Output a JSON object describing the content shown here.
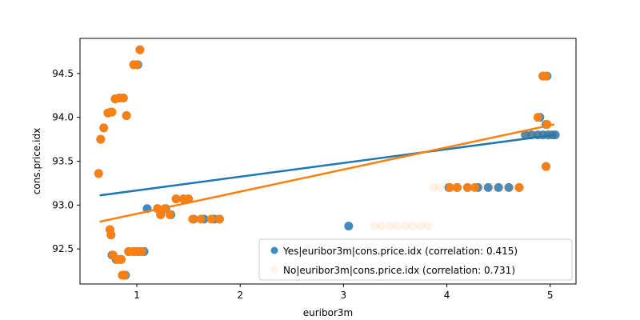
{
  "chart_data": {
    "type": "scatter",
    "title": "",
    "xlabel": "euribor3m",
    "ylabel": "cons.price.idx",
    "xlim": [
      0.45,
      5.25
    ],
    "ylim": [
      92.1,
      94.9
    ],
    "xticks": [
      1,
      2,
      3,
      4,
      5
    ],
    "yticks": [
      92.5,
      93.0,
      93.5,
      94.0,
      94.5
    ],
    "xtick_labels": [
      "1",
      "2",
      "3",
      "4",
      "5"
    ],
    "ytick_labels": [
      "92.5",
      "93.0",
      "93.5",
      "94.0",
      "94.5"
    ],
    "grid": false,
    "legend_position": "lower right",
    "series": [
      {
        "name": "Yes|euribor3m|cons.price.idx (correlation: 0.415)",
        "color": "#1f77b4",
        "alpha": 0.85,
        "points": [
          [
            0.63,
            93.36
          ],
          [
            0.65,
            93.75
          ],
          [
            0.68,
            93.88
          ],
          [
            0.72,
            94.05
          ],
          [
            0.75,
            94.06
          ],
          [
            0.79,
            94.21
          ],
          [
            0.83,
            94.22
          ],
          [
            0.87,
            94.22
          ],
          [
            0.9,
            94.02
          ],
          [
            0.74,
            92.72
          ],
          [
            0.75,
            92.66
          ],
          [
            0.76,
            92.43
          ],
          [
            0.8,
            92.38
          ],
          [
            0.84,
            92.38
          ],
          [
            0.86,
            92.2
          ],
          [
            0.89,
            92.2
          ],
          [
            0.92,
            92.47
          ],
          [
            0.97,
            92.47
          ],
          [
            1.02,
            92.47
          ],
          [
            1.07,
            92.47
          ],
          [
            0.97,
            94.6
          ],
          [
            1.01,
            94.6
          ],
          [
            1.03,
            94.77
          ],
          [
            1.1,
            92.96
          ],
          [
            1.2,
            92.96
          ],
          [
            1.28,
            92.96
          ],
          [
            1.23,
            92.89
          ],
          [
            1.33,
            92.89
          ],
          [
            1.38,
            93.07
          ],
          [
            1.45,
            93.07
          ],
          [
            1.5,
            93.07
          ],
          [
            1.55,
            92.84
          ],
          [
            1.65,
            92.84
          ],
          [
            1.75,
            92.84
          ],
          [
            1.8,
            92.84
          ],
          [
            3.05,
            92.76
          ],
          [
            4.02,
            93.2
          ],
          [
            4.1,
            93.2
          ],
          [
            4.2,
            93.2
          ],
          [
            4.3,
            93.2
          ],
          [
            4.4,
            93.2
          ],
          [
            4.5,
            93.2
          ],
          [
            4.6,
            93.2
          ],
          [
            4.7,
            93.2
          ],
          [
            4.76,
            93.8
          ],
          [
            4.82,
            93.8
          ],
          [
            4.88,
            93.8
          ],
          [
            4.93,
            93.8
          ],
          [
            4.98,
            93.8
          ],
          [
            5.02,
            93.8
          ],
          [
            5.05,
            93.8
          ],
          [
            4.9,
            94.0
          ],
          [
            4.93,
            94.47
          ],
          [
            4.97,
            94.47
          ],
          [
            4.96,
            93.92
          ],
          [
            4.96,
            93.44
          ]
        ],
        "fit": {
          "x": [
            0.64,
            5.04
          ],
          "y": [
            93.11,
            93.8
          ]
        }
      },
      {
        "name": "No|euribor3m|cons.price.idx (correlation: 0.731)",
        "color": "#ff7f0e",
        "alpha": 0.95,
        "points": [
          [
            0.63,
            93.36
          ],
          [
            0.65,
            93.75
          ],
          [
            0.68,
            93.88
          ],
          [
            0.72,
            94.05
          ],
          [
            0.76,
            94.06
          ],
          [
            0.79,
            94.21
          ],
          [
            0.83,
            94.22
          ],
          [
            0.87,
            94.22
          ],
          [
            0.9,
            94.02
          ],
          [
            0.74,
            92.72
          ],
          [
            0.75,
            92.66
          ],
          [
            0.77,
            92.43
          ],
          [
            0.81,
            92.38
          ],
          [
            0.85,
            92.38
          ],
          [
            0.86,
            92.2
          ],
          [
            0.88,
            92.2
          ],
          [
            0.92,
            92.47
          ],
          [
            0.96,
            92.47
          ],
          [
            1.0,
            92.47
          ],
          [
            1.05,
            92.47
          ],
          [
            0.97,
            94.6
          ],
          [
            1.0,
            94.6
          ],
          [
            1.03,
            94.77
          ],
          [
            1.2,
            92.96
          ],
          [
            1.27,
            92.96
          ],
          [
            1.23,
            92.89
          ],
          [
            1.32,
            92.89
          ],
          [
            1.38,
            93.07
          ],
          [
            1.45,
            93.07
          ],
          [
            1.5,
            93.07
          ],
          [
            1.54,
            92.84
          ],
          [
            1.62,
            92.84
          ],
          [
            1.72,
            92.84
          ],
          [
            1.8,
            92.84
          ],
          [
            4.03,
            93.2
          ],
          [
            4.1,
            93.2
          ],
          [
            4.2,
            93.2
          ],
          [
            4.27,
            93.2
          ],
          [
            4.7,
            93.2
          ],
          [
            4.88,
            94.0
          ],
          [
            4.93,
            94.47
          ],
          [
            4.96,
            94.47
          ],
          [
            4.97,
            93.92
          ],
          [
            4.96,
            93.44
          ]
        ],
        "faint_points": [
          [
            3.3,
            92.76
          ],
          [
            3.37,
            92.76
          ],
          [
            3.45,
            92.76
          ],
          [
            3.52,
            92.76
          ],
          [
            3.6,
            92.76
          ],
          [
            3.67,
            92.76
          ],
          [
            3.75,
            92.76
          ],
          [
            3.82,
            92.76
          ],
          [
            3.87,
            93.2
          ],
          [
            3.93,
            93.2
          ],
          [
            4.35,
            93.2
          ],
          [
            4.45,
            93.2
          ],
          [
            4.55,
            93.2
          ],
          [
            4.62,
            93.2
          ],
          [
            4.75,
            93.8
          ],
          [
            4.8,
            93.8
          ],
          [
            4.85,
            93.8
          ],
          [
            4.9,
            93.8
          ],
          [
            4.95,
            93.8
          ],
          [
            5.0,
            93.8
          ],
          [
            5.04,
            93.8
          ]
        ],
        "fit": {
          "x": [
            0.64,
            5.04
          ],
          "y": [
            92.81,
            93.92
          ]
        }
      }
    ]
  }
}
